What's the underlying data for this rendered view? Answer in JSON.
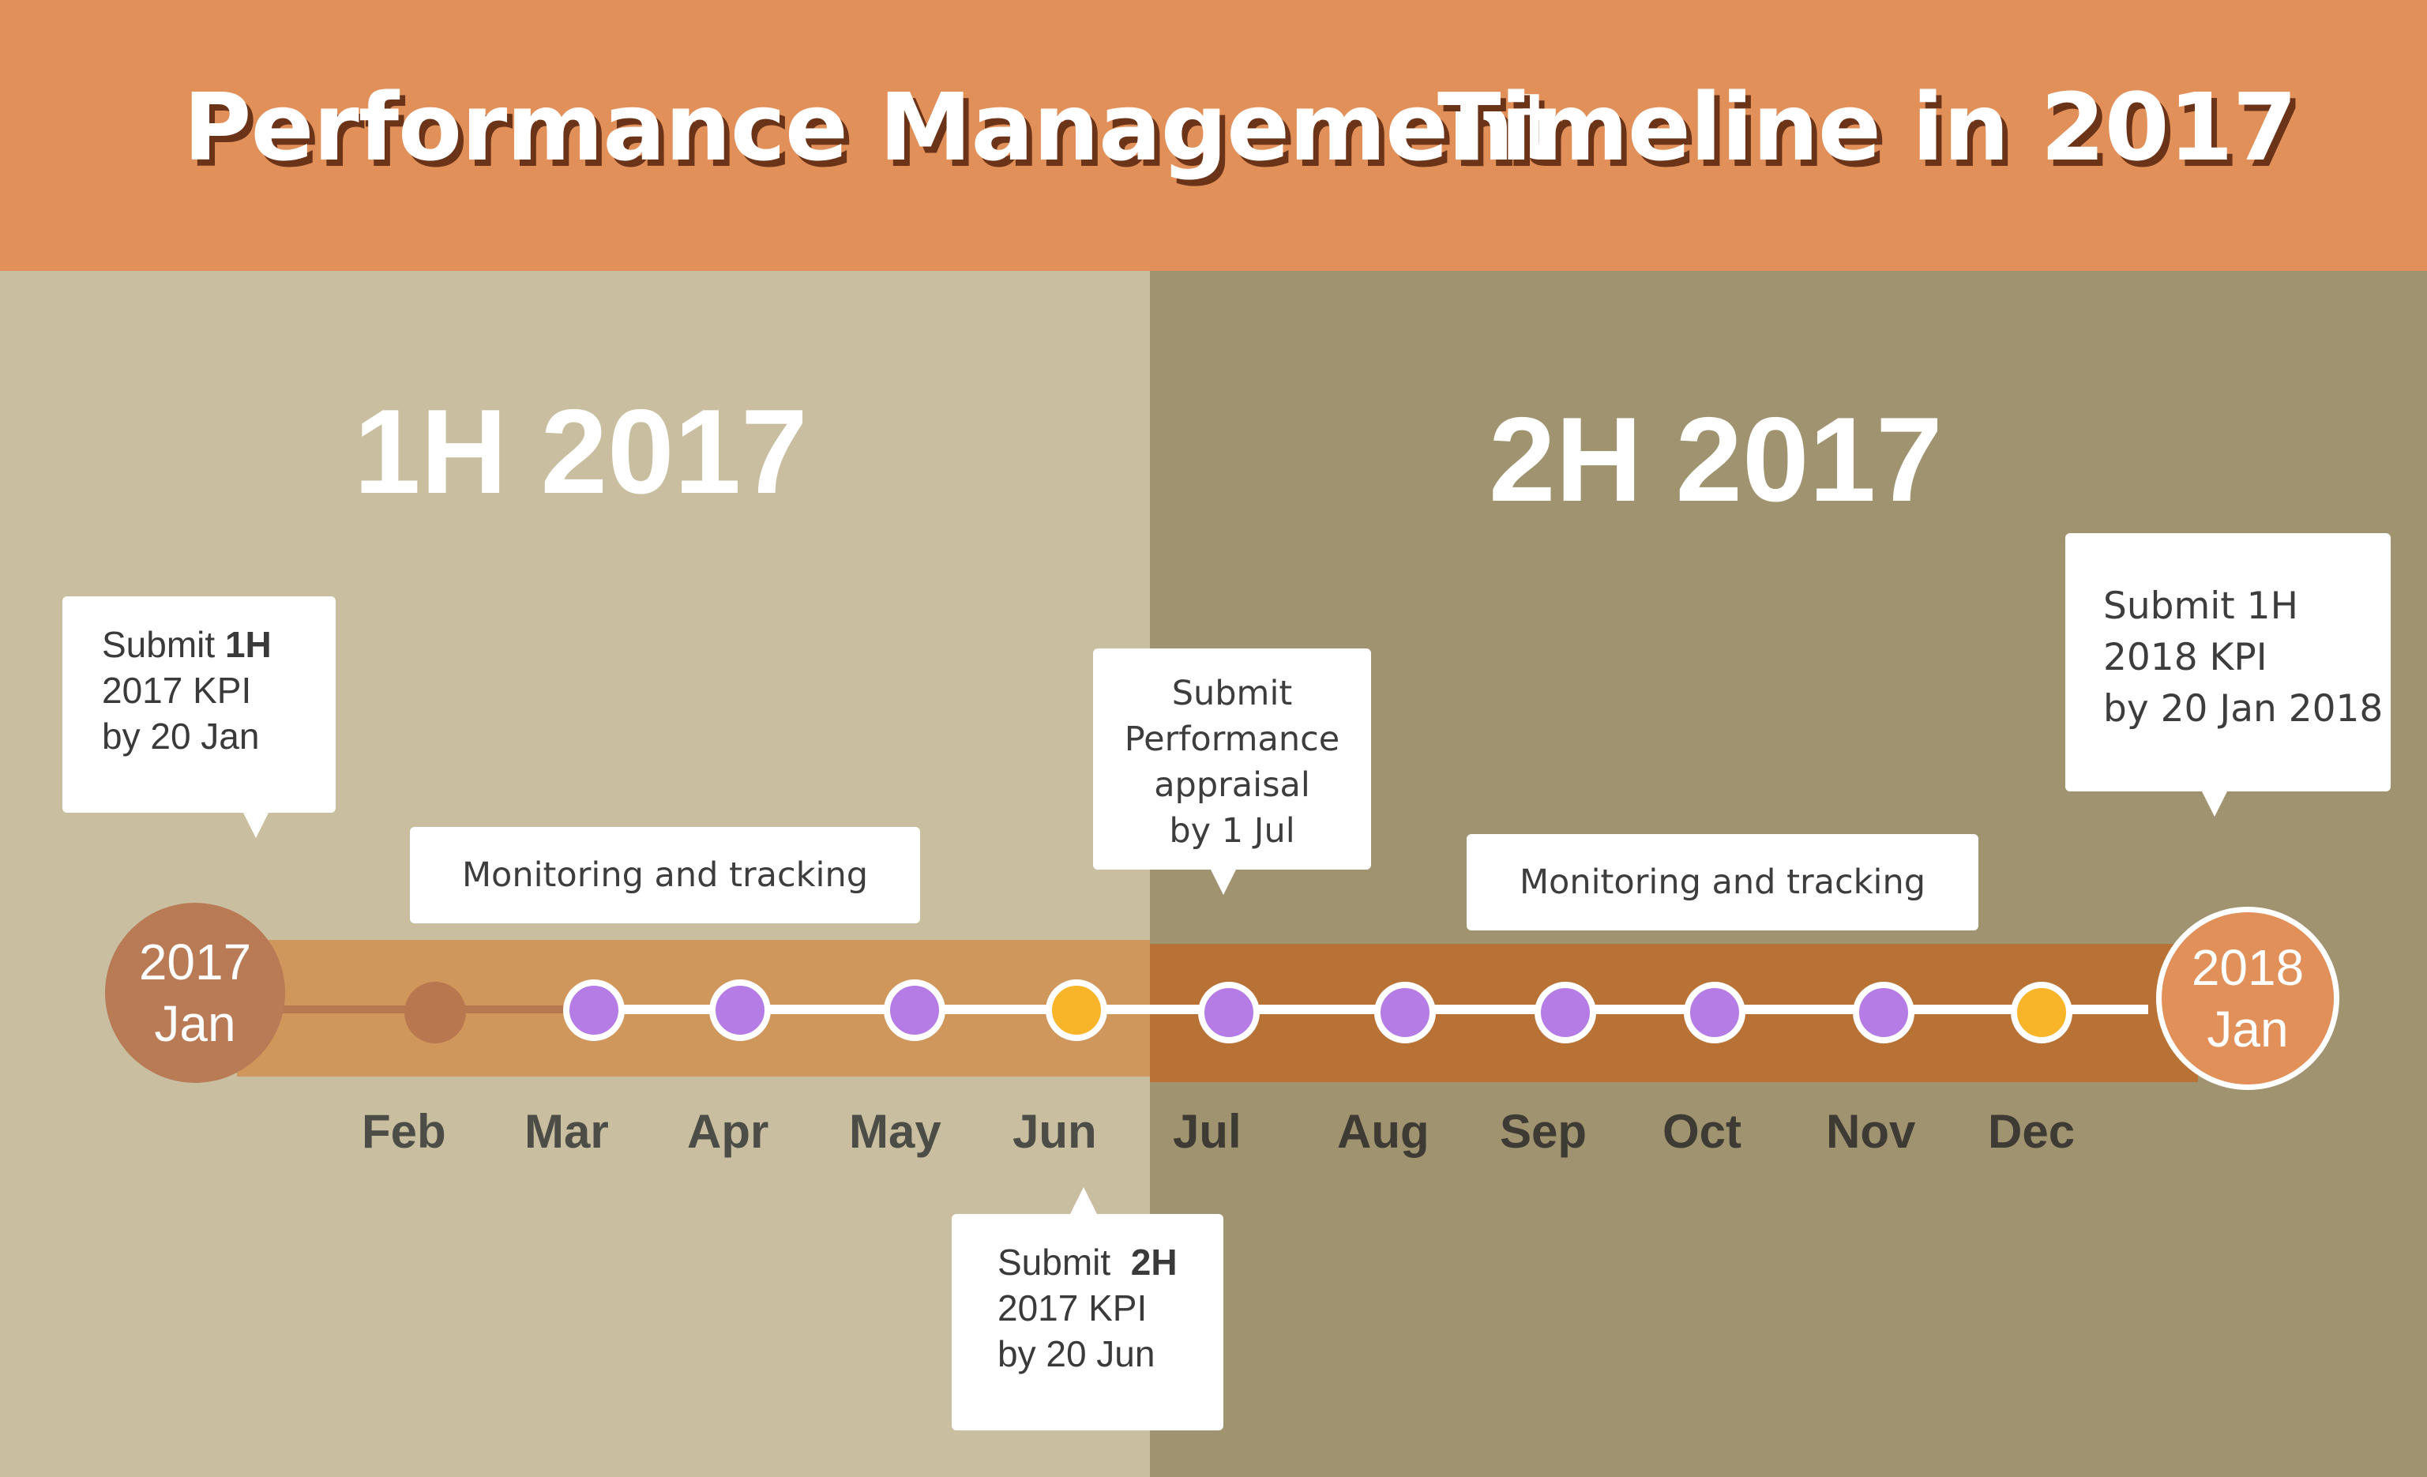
{
  "header": {
    "title_part1": "Performance Management",
    "title_part2": "Timeline in 2017"
  },
  "halves": {
    "first": "1H 2017",
    "second": "2H 2017"
  },
  "start_circle": {
    "year": "2017",
    "month": "Jan"
  },
  "end_circle": {
    "year": "2018",
    "month": "Jan"
  },
  "months": [
    "Feb",
    "Mar",
    "Apr",
    "May",
    "Jun",
    "Jul",
    "Aug",
    "Sep",
    "Oct",
    "Nov",
    "Dec"
  ],
  "callouts": {
    "submit_1h_2017": {
      "prefix": "Submit",
      "bold": "1H",
      "line2": "2017 KPI",
      "line3": "by 20 Jan"
    },
    "monitoring_1": "Monitoring and tracking",
    "appraisal": {
      "line1": "Submit",
      "line2": "Performance",
      "line3": "appraisal",
      "line4": "by 1 Jul"
    },
    "monitoring_2": "Monitoring and tracking",
    "submit_1h_2018": {
      "line1": "Submit 1H",
      "line2": "2018 KPI",
      "line3": "by 20 Jan 2018"
    },
    "submit_2h_2017": {
      "prefix": "Submit",
      "bold": "2H",
      "line2": "2017 KPI",
      "line3": "by 20 Jun"
    }
  },
  "colors": {
    "header": "#e2905a",
    "first_half_bg": "#c9bfa0",
    "second_half_bg": "#a09370",
    "milestone_purple": "#b57ce6",
    "milestone_yellow": "#f9b52a"
  }
}
